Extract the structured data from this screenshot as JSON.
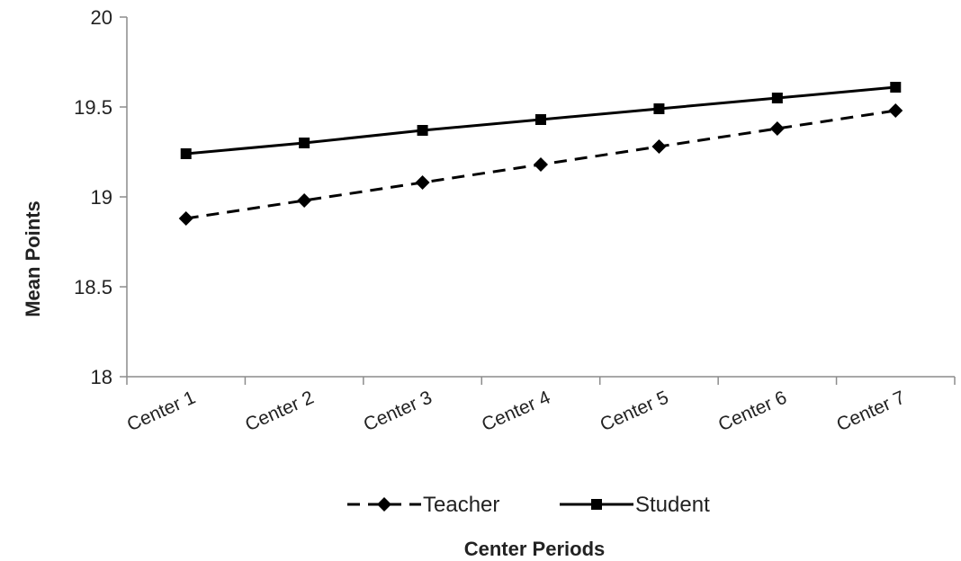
{
  "chart_data": {
    "type": "line",
    "categories": [
      "Center 1",
      "Center 2",
      "Center 3",
      "Center 4",
      "Center 5",
      "Center 6",
      "Center 7"
    ],
    "series": [
      {
        "name": "Teacher",
        "values": [
          18.88,
          18.98,
          19.08,
          19.18,
          19.28,
          19.38,
          19.48
        ],
        "line_style": "dashed",
        "marker": "diamond",
        "color": "#000000"
      },
      {
        "name": "Student",
        "values": [
          19.24,
          19.3,
          19.37,
          19.43,
          19.49,
          19.55,
          19.61
        ],
        "line_style": "solid",
        "marker": "square",
        "color": "#000000"
      }
    ],
    "title": "",
    "xlabel": "Center  Periods",
    "ylabel": "Mean Points",
    "ylim": [
      18,
      20
    ],
    "yticks": [
      "18",
      "18.5",
      "19",
      "19.5",
      "20"
    ],
    "grid": false,
    "legend": "bottom"
  }
}
